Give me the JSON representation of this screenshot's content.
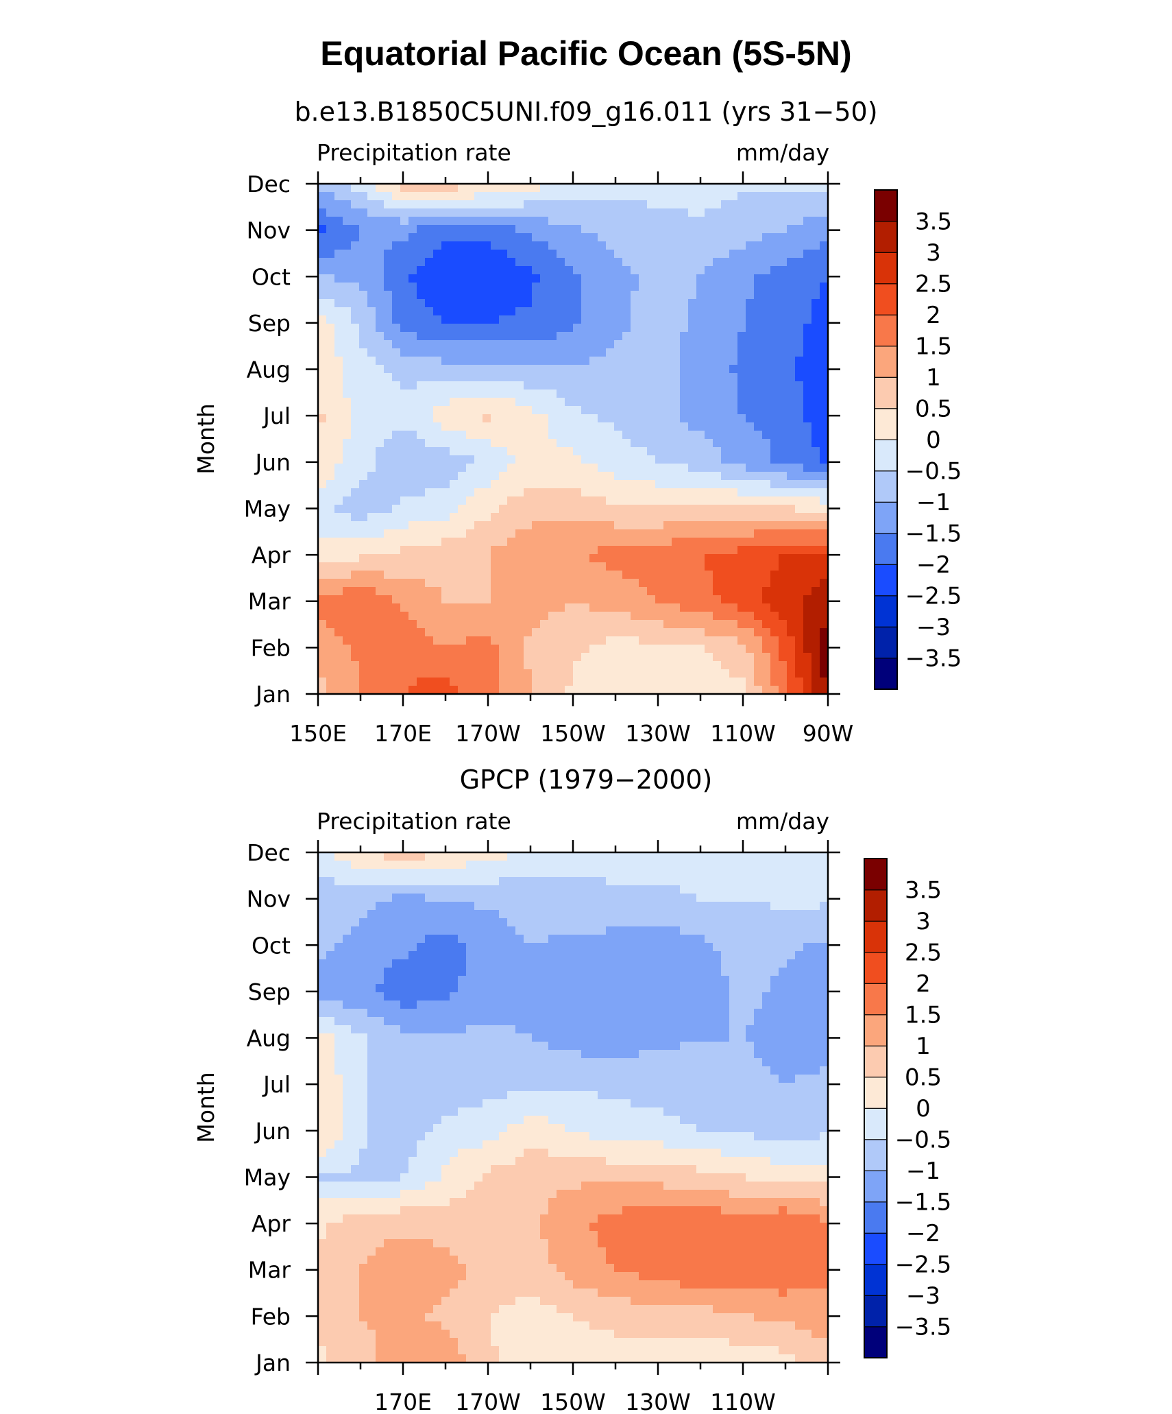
{
  "title": "Equatorial Pacific Ocean (5S-5N)",
  "colorbar": {
    "levels": [
      "-3.5",
      "-3",
      "-2.5",
      "-2",
      "-1.5",
      "-1",
      "-0.5",
      "0",
      "0.5",
      "1",
      "1.5",
      "2",
      "2.5",
      "3",
      "3.5"
    ],
    "colors": [
      "#00007a",
      "#0022aa",
      "#0033d4",
      "#1a4cff",
      "#4a7af0",
      "#7ea4f7",
      "#b0c9f9",
      "#d9e9fb",
      "#fde9d6",
      "#fccbb0",
      "#fba67c",
      "#f8784a",
      "#f04e1f",
      "#d93308",
      "#b21e00",
      "#7a0000"
    ]
  },
  "chart_data": [
    {
      "type": "heatmap",
      "title": "b.e13.B1850C5UNI.f09_g16.011 (yrs 31−50)",
      "left_label": "Precipitation rate",
      "right_label": "mm/day",
      "ylabel": "Month",
      "x_ticks": [
        "150E",
        "170E",
        "170W",
        "150W",
        "130W",
        "110W",
        "90W"
      ],
      "y_ticks": [
        "Jan",
        "Feb",
        "Mar",
        "Apr",
        "May",
        "Jun",
        "Jul",
        "Aug",
        "Sep",
        "Oct",
        "Nov",
        "Dec"
      ],
      "x": [
        "150E",
        "160E",
        "170E",
        "180",
        "170W",
        "160W",
        "150W",
        "140W",
        "130W",
        "120W",
        "110W",
        "100W",
        "90W"
      ],
      "z": [
        [
          0.8,
          1.5,
          2.0,
          2.3,
          1.6,
          1.0,
          0.4,
          0.1,
          0.1,
          0.2,
          0.4,
          1.8,
          3.6
        ],
        [
          1.2,
          1.6,
          1.8,
          1.5,
          1.7,
          0.9,
          0.6,
          0.3,
          0.4,
          0.5,
          0.8,
          2.2,
          3.8
        ],
        [
          1.6,
          2.0,
          1.4,
          1.0,
          1.0,
          1.2,
          1.0,
          1.2,
          1.5,
          1.8,
          2.3,
          2.8,
          3.4
        ],
        [
          0.2,
          0.4,
          0.6,
          0.8,
          1.0,
          1.4,
          1.4,
          1.7,
          1.8,
          2.0,
          2.2,
          2.5,
          2.6
        ],
        [
          -0.3,
          -0.8,
          -0.4,
          -0.2,
          0.4,
          0.8,
          0.8,
          0.6,
          0.5,
          0.6,
          0.6,
          0.5,
          0.4
        ],
        [
          0.4,
          -0.3,
          -0.9,
          -0.8,
          -0.4,
          0.2,
          0.1,
          -0.3,
          -0.5,
          -0.7,
          -1.2,
          -1.6,
          -2.1
        ],
        [
          0.6,
          -0.2,
          -0.4,
          0.3,
          0.6,
          0.2,
          -0.4,
          -0.6,
          -0.8,
          -1.2,
          -1.5,
          -1.7,
          -2.3
        ],
        [
          0.4,
          -0.3,
          -0.6,
          -0.8,
          -0.8,
          -0.9,
          -0.9,
          -0.9,
          -0.8,
          -1.2,
          -1.6,
          -1.9,
          -2.3
        ],
        [
          0.3,
          -0.6,
          -1.7,
          -2.0,
          -2.0,
          -1.9,
          -1.6,
          -1.1,
          -0.8,
          -1.1,
          -1.5,
          -1.8,
          -2.2
        ],
        [
          -1.0,
          -1.1,
          -1.9,
          -2.5,
          -2.5,
          -2.1,
          -1.6,
          -1.2,
          -0.8,
          -1.0,
          -1.4,
          -1.7,
          -2.0
        ],
        [
          -2.2,
          -1.5,
          -1.4,
          -1.9,
          -1.8,
          -1.4,
          -1.1,
          -0.8,
          -0.6,
          -0.6,
          -0.8,
          -1.0,
          -1.4
        ],
        [
          -0.8,
          -0.3,
          0.8,
          0.8,
          0.6,
          0.2,
          -0.2,
          -0.3,
          -0.4,
          -0.3,
          -0.4,
          -0.4,
          -0.3
        ]
      ]
    },
    {
      "type": "heatmap",
      "title": "GPCP (1979−2000)",
      "left_label": "Precipitation rate",
      "right_label": "mm/day",
      "ylabel": "Month",
      "x_ticks": [
        "170E",
        "170W",
        "150W",
        "130W",
        "110W"
      ],
      "y_ticks": [
        "Jan",
        "Feb",
        "Mar",
        "Apr",
        "May",
        "Jun",
        "Jul",
        "Aug",
        "Sep",
        "Oct",
        "Nov",
        "Dec"
      ],
      "x": [
        "150E",
        "160E",
        "170E",
        "180",
        "170W",
        "160W",
        "150W",
        "140W",
        "130W",
        "120W",
        "110W",
        "100W",
        "90W"
      ],
      "z": [
        [
          0.4,
          0.8,
          1.3,
          1.3,
          0.6,
          0.1,
          0.2,
          0.2,
          0.1,
          0.1,
          0.2,
          0.3,
          0.8
        ],
        [
          0.6,
          1.0,
          1.1,
          0.9,
          0.5,
          0.3,
          0.5,
          0.7,
          0.8,
          0.8,
          1.0,
          1.1,
          1.3
        ],
        [
          0.6,
          1.0,
          1.3,
          1.2,
          0.8,
          0.7,
          1.2,
          1.5,
          1.7,
          1.9,
          1.8,
          1.9,
          1.6
        ],
        [
          0.4,
          0.8,
          0.9,
          0.8,
          0.7,
          0.9,
          1.4,
          1.7,
          1.9,
          2.0,
          1.7,
          2.0,
          1.5
        ],
        [
          -0.5,
          -0.6,
          -0.5,
          0.1,
          0.6,
          0.8,
          0.9,
          0.9,
          0.8,
          0.7,
          0.5,
          0.3,
          0.3
        ],
        [
          0.6,
          -0.4,
          -0.8,
          -0.3,
          -0.2,
          0.3,
          0.0,
          -0.3,
          -0.3,
          -0.5,
          -0.6,
          -0.7,
          -0.6
        ],
        [
          0.4,
          -0.4,
          -0.9,
          -0.9,
          -0.7,
          -0.6,
          -0.6,
          -0.6,
          -0.7,
          -0.8,
          -0.9,
          -1.0,
          -0.9
        ],
        [
          0.2,
          -0.4,
          -0.9,
          -0.9,
          -0.9,
          -1.0,
          -1.2,
          -1.3,
          -1.1,
          -1.0,
          -1.0,
          -1.1,
          -1.2
        ],
        [
          -1.2,
          -1.4,
          -1.8,
          -1.6,
          -1.3,
          -1.1,
          -1.3,
          -1.3,
          -1.3,
          -1.2,
          -0.9,
          -1.1,
          -1.3
        ],
        [
          -0.9,
          -1.1,
          -1.4,
          -1.7,
          -1.3,
          -1.0,
          -1.1,
          -1.2,
          -1.3,
          -1.1,
          -0.8,
          -0.9,
          -1.1
        ],
        [
          -0.8,
          -0.9,
          -1.1,
          -1.0,
          -0.9,
          -0.8,
          -0.7,
          -0.6,
          -0.6,
          -0.5,
          -0.5,
          -0.4,
          -0.4
        ],
        [
          -0.2,
          0.4,
          0.8,
          0.5,
          0.2,
          -0.1,
          -0.3,
          -0.3,
          -0.3,
          -0.3,
          -0.3,
          -0.3,
          -0.3
        ]
      ]
    }
  ]
}
